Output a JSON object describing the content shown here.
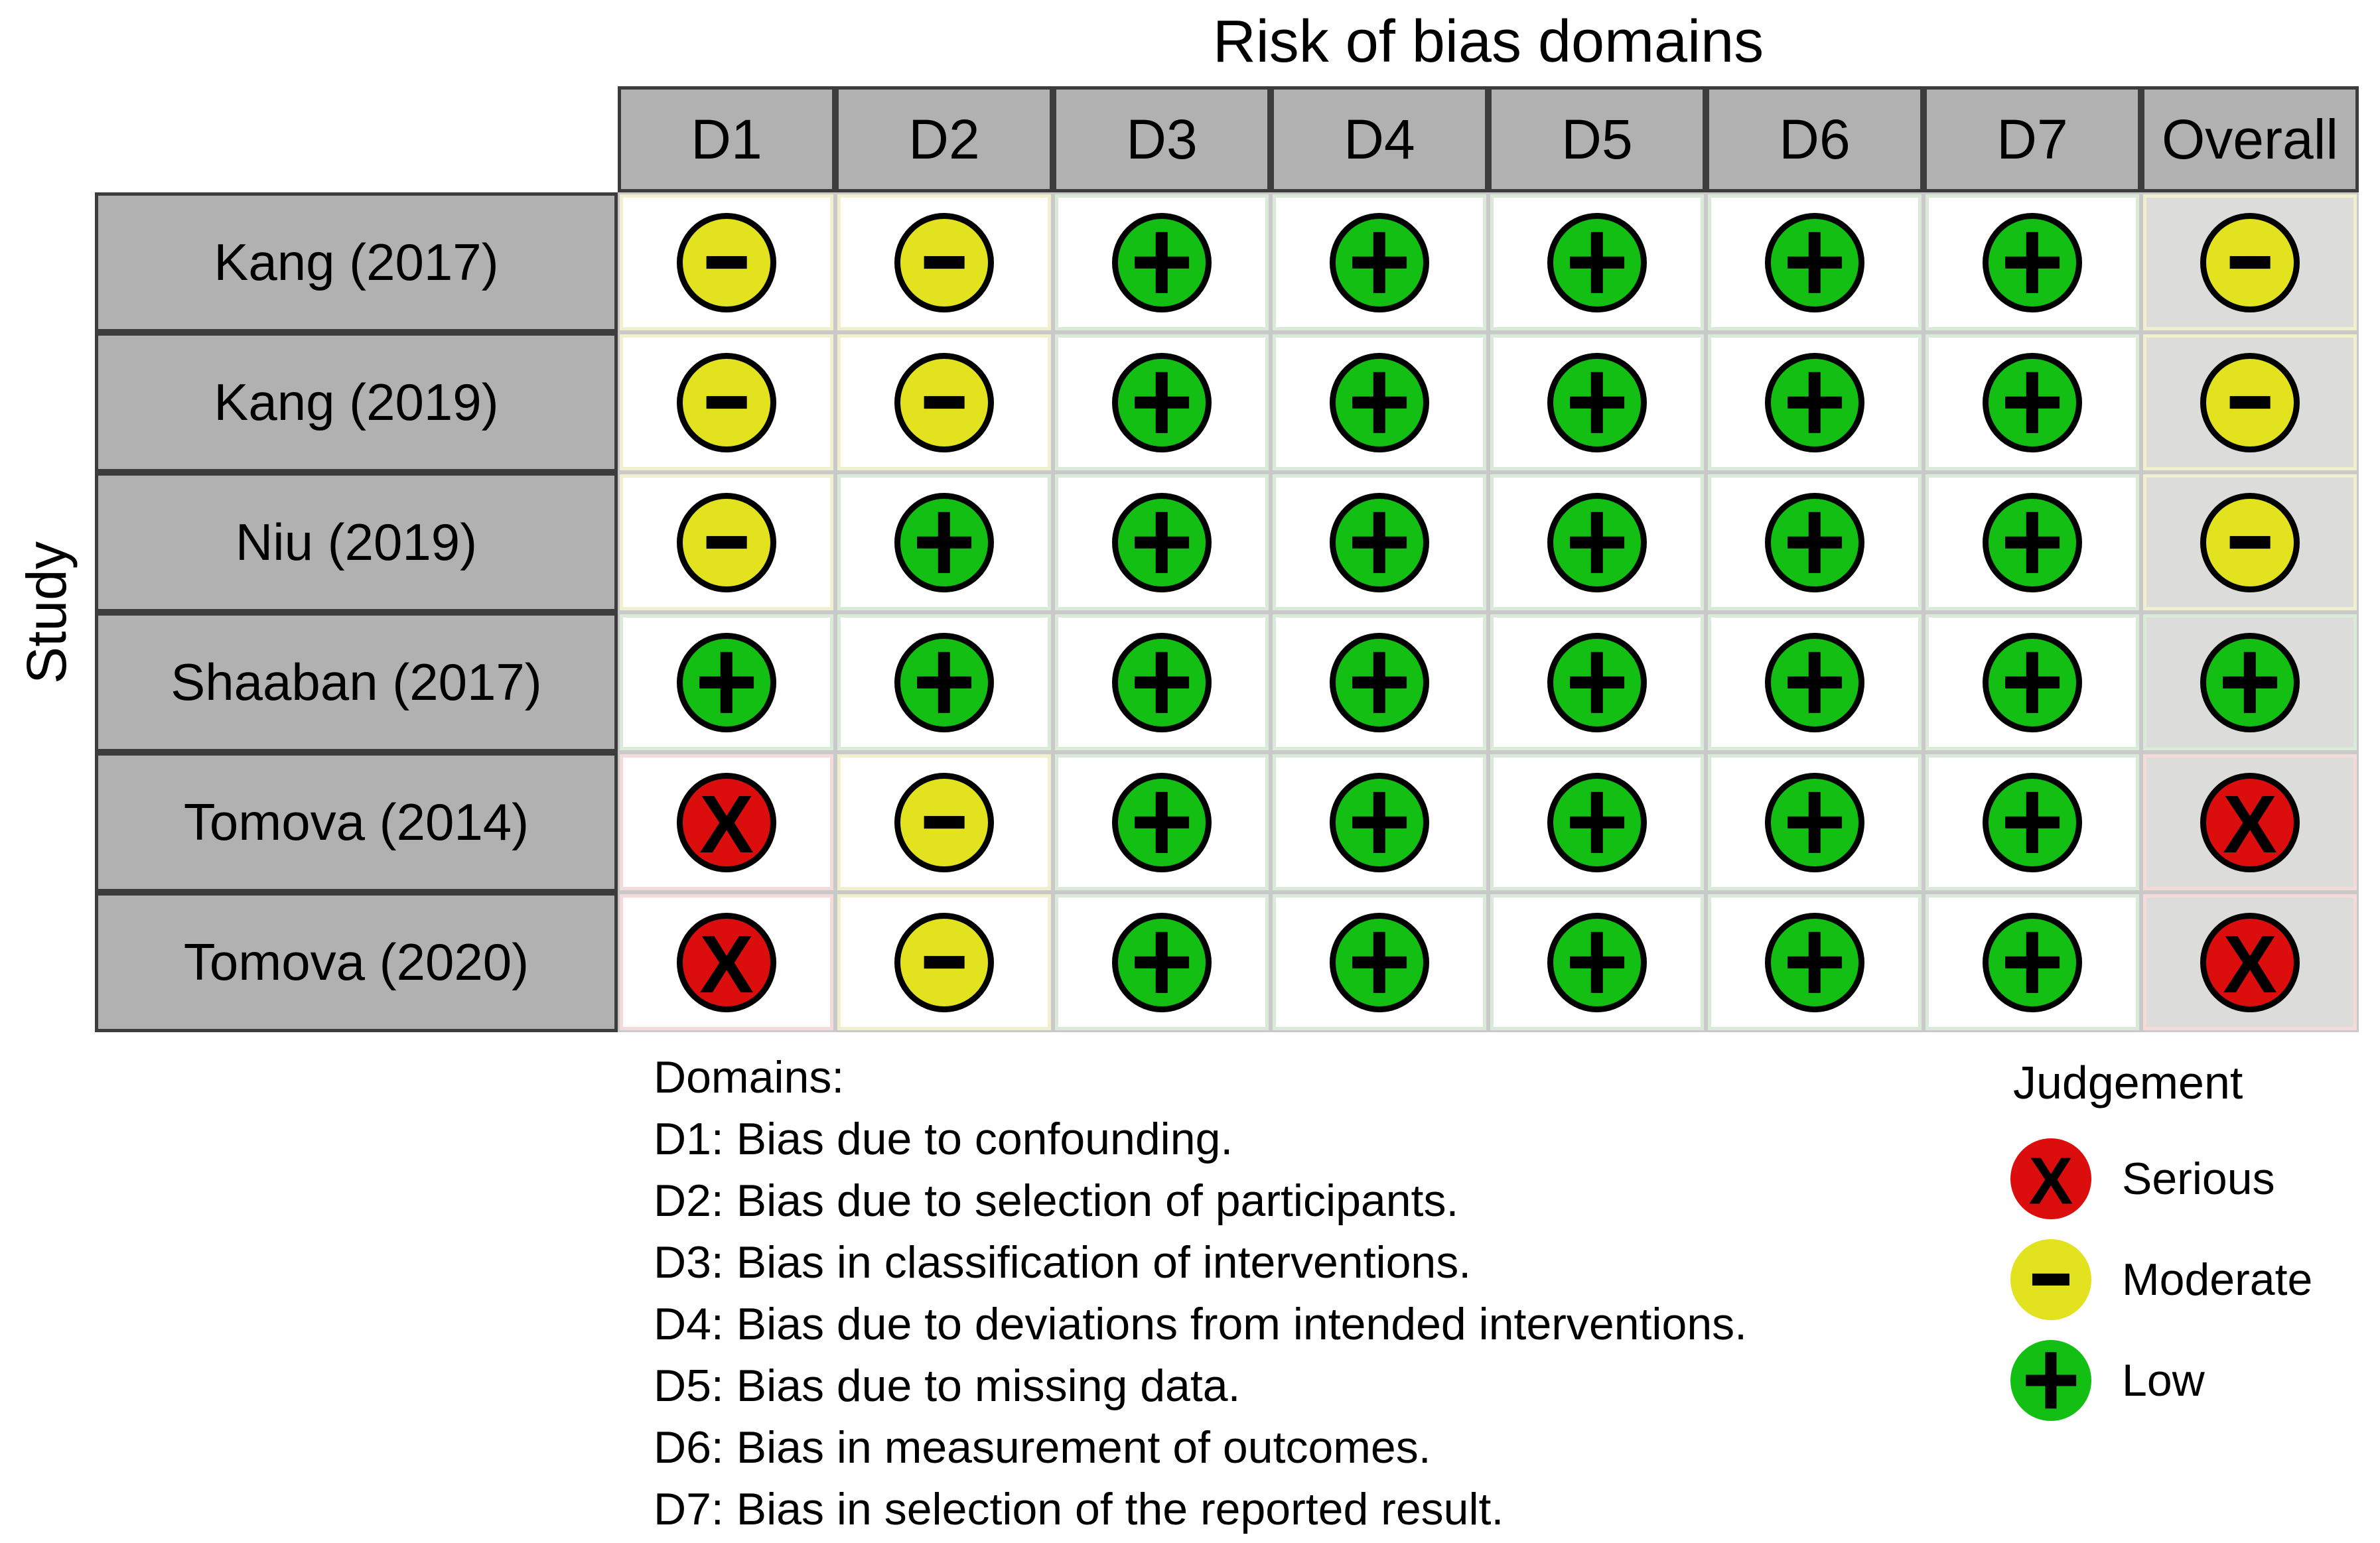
{
  "colors": {
    "background": "#ffffff",
    "header_bg": "#b1b1b1",
    "header_border": "#3c3c3c",
    "grid_line": "#c9c9c9",
    "overall_cell_bg": "#dcdcda",
    "judgement": {
      "low": "#12bf12",
      "moderate": "#e2e21e",
      "serious": "#dc0d0d"
    },
    "cell_tint": {
      "low": "#d9ead9",
      "moderate": "#f0f0cf",
      "serious": "#f5dada"
    }
  },
  "chart_data": {
    "type": "heatmap",
    "title": "Risk of bias domains",
    "y_axis_label": "Study",
    "x_categories": [
      "D1",
      "D2",
      "D3",
      "D4",
      "D5",
      "D6",
      "D7",
      "Overall"
    ],
    "y_categories": [
      "Kang (2017)",
      "Kang (2019)",
      "Niu (2019)",
      "Shaaban (2017)",
      "Tomova (2014)",
      "Tomova (2020)"
    ],
    "values": [
      [
        "moderate",
        "moderate",
        "low",
        "low",
        "low",
        "low",
        "low",
        "moderate"
      ],
      [
        "moderate",
        "moderate",
        "low",
        "low",
        "low",
        "low",
        "low",
        "moderate"
      ],
      [
        "moderate",
        "low",
        "low",
        "low",
        "low",
        "low",
        "low",
        "moderate"
      ],
      [
        "low",
        "low",
        "low",
        "low",
        "low",
        "low",
        "low",
        "low"
      ],
      [
        "serious",
        "moderate",
        "low",
        "low",
        "low",
        "low",
        "low",
        "serious"
      ],
      [
        "serious",
        "moderate",
        "low",
        "low",
        "low",
        "low",
        "low",
        "serious"
      ]
    ],
    "legend_title": "Judgement",
    "legend": [
      {
        "key": "serious",
        "symbol": "X",
        "label": "Serious"
      },
      {
        "key": "moderate",
        "symbol": "-",
        "label": "Moderate"
      },
      {
        "key": "low",
        "symbol": "+",
        "label": "Low"
      }
    ]
  },
  "domains_legend": {
    "heading": "Domains:",
    "items": [
      "D1: Bias due to confounding.",
      "D2: Bias due to selection of participants.",
      "D3: Bias in classification of interventions.",
      "D4: Bias due to deviations from intended interventions.",
      "D5: Bias due to missing data.",
      "D6: Bias in measurement of outcomes.",
      "D7: Bias in selection of the reported result."
    ]
  }
}
